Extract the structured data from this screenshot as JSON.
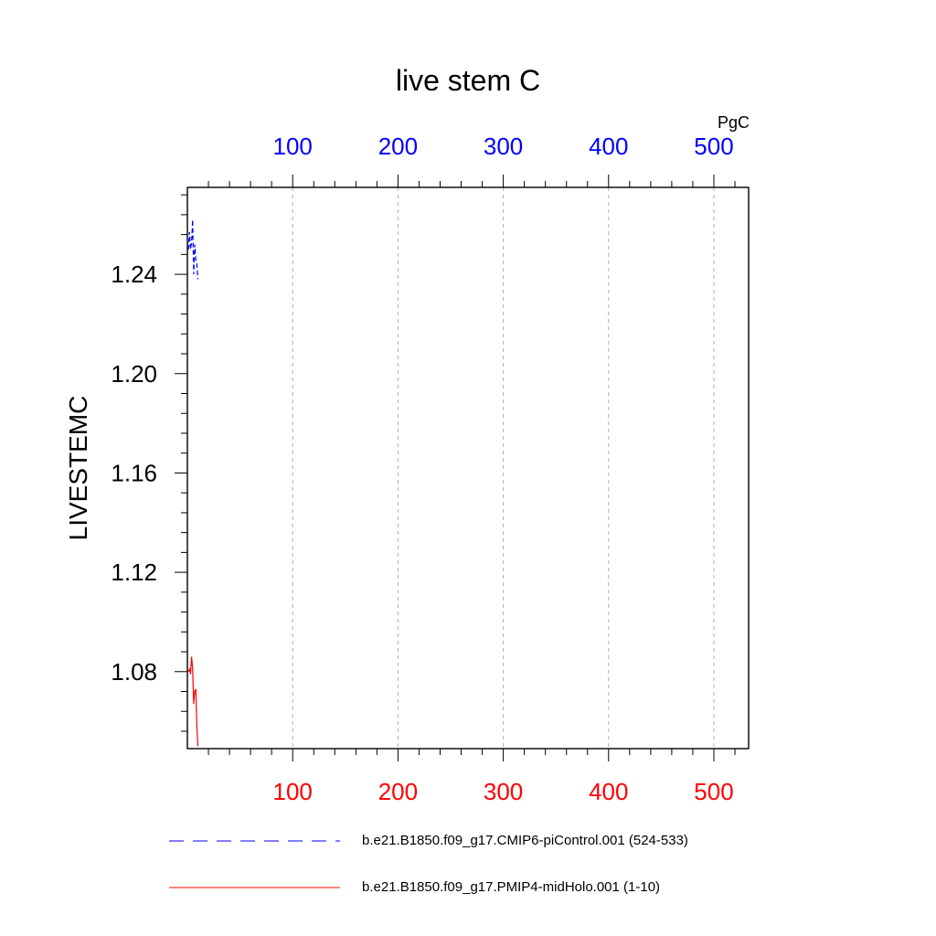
{
  "chart_data": {
    "type": "line",
    "title": "live stem C",
    "ylabel": "LIVESTEMC",
    "unit_label": "PgC",
    "xlim": [
      0,
      533
    ],
    "ylim": [
      1.049,
      1.275
    ],
    "y_ticks": [
      "1.24",
      "1.20",
      "1.16",
      "1.12",
      "1.08"
    ],
    "y_tick_values": [
      1.24,
      1.2,
      1.16,
      1.12,
      1.08
    ],
    "x_ticks_top": [
      "100",
      "200",
      "300",
      "400",
      "500"
    ],
    "x_ticks_bottom": [
      "100",
      "200",
      "300",
      "400",
      "500"
    ],
    "x_tick_values": [
      100,
      200,
      300,
      400,
      500
    ],
    "grid": "vertical dashed at major x ticks",
    "series": [
      {
        "name": "b.e21.B1850.f09_g17.CMIP6-piControl.001 (524-533)",
        "color": "#0000ff",
        "style": "dashed",
        "axis": "top",
        "x": [
          1,
          2,
          3,
          4,
          5,
          6,
          7,
          8,
          9,
          10
        ],
        "y": [
          1.25,
          1.257,
          1.25,
          1.253,
          1.262,
          1.24,
          1.252,
          1.246,
          1.244,
          1.238
        ]
      },
      {
        "name": "b.e21.B1850.f09_g17.PMIP4-midHolo.001 (1-10)",
        "color": "#ff0000",
        "style": "solid",
        "axis": "bottom",
        "x": [
          1,
          2,
          3,
          4,
          5,
          6,
          7,
          8,
          9,
          10
        ],
        "y": [
          1.08,
          1.081,
          1.079,
          1.086,
          1.081,
          1.067,
          1.072,
          1.073,
          1.058,
          1.05
        ]
      }
    ],
    "legend_position": "bottom"
  },
  "colors": {
    "top_axis": "#0000ff",
    "bottom_axis": "#ff0000",
    "grid": "#b0b0b0"
  }
}
